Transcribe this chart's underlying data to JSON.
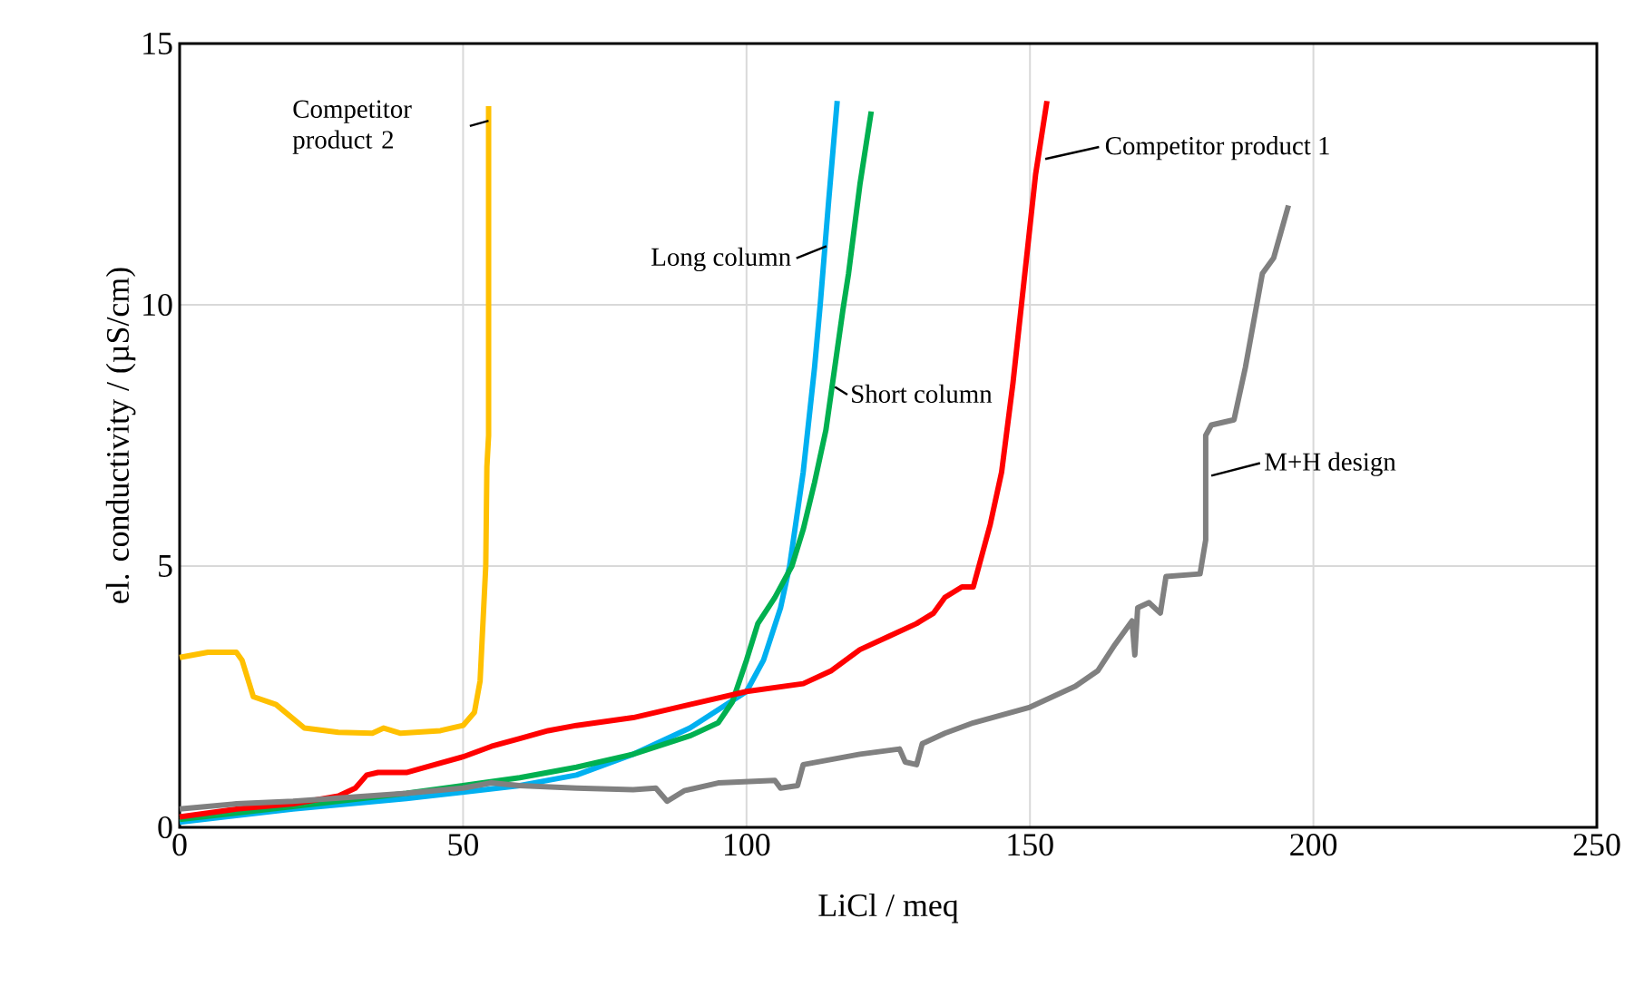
{
  "chart_data": {
    "type": "line",
    "xlabel": "LiCl / meq",
    "ylabel": "el. conductivity / (µS/cm)",
    "xlim": [
      0,
      250
    ],
    "ylim": [
      0,
      15
    ],
    "xticks": [
      0,
      50,
      100,
      150,
      200,
      250
    ],
    "yticks": [
      0,
      5,
      10,
      15
    ],
    "grid": true,
    "legend": false,
    "marker": "none",
    "line_style": "solid",
    "series": [
      {
        "name": "Competitor product 2",
        "color": "#ffc000",
        "x": [
          0,
          5,
          10,
          11,
          13,
          17,
          22,
          28,
          34,
          36,
          39,
          46,
          50,
          52,
          53,
          54,
          54.2,
          54.5,
          54.5
        ],
        "values": [
          3.25,
          3.35,
          3.35,
          3.2,
          2.5,
          2.35,
          1.9,
          1.82,
          1.8,
          1.9,
          1.8,
          1.85,
          1.95,
          2.2,
          2.8,
          5,
          6.9,
          7.5,
          13.8
        ]
      },
      {
        "name": "Long column",
        "color": "#00b0f0",
        "x": [
          0,
          20,
          40,
          60,
          70,
          80,
          90,
          100,
          103,
          106,
          107.6,
          110,
          112,
          113,
          114.5,
          116
        ],
        "values": [
          0.1,
          0.35,
          0.55,
          0.8,
          1.0,
          1.4,
          1.9,
          2.6,
          3.2,
          4.2,
          5.0,
          6.8,
          8.8,
          10,
          12,
          13.9
        ]
      },
      {
        "name": "Short column",
        "color": "#00b050",
        "x": [
          0,
          20,
          40,
          60,
          70,
          80,
          90,
          95,
          97.5,
          100,
          102,
          105,
          108,
          110,
          112,
          114,
          117,
          118,
          120,
          122
        ],
        "values": [
          0.15,
          0.4,
          0.65,
          0.95,
          1.15,
          1.4,
          1.75,
          2.0,
          2.4,
          3.2,
          3.9,
          4.4,
          5.0,
          5.7,
          6.6,
          7.6,
          9.9,
          10.6,
          12.3,
          13.7
        ]
      },
      {
        "name": "Competitor product 1",
        "color": "#ff0000",
        "x": [
          0,
          10,
          20,
          28,
          31,
          33,
          35,
          40,
          45,
          50,
          55,
          60,
          65,
          70,
          80,
          90,
          100,
          110,
          115,
          120,
          125,
          130,
          133,
          135,
          138,
          140,
          143,
          145,
          147,
          149,
          151,
          153
        ],
        "values": [
          0.2,
          0.35,
          0.45,
          0.6,
          0.75,
          1.0,
          1.05,
          1.05,
          1.2,
          1.35,
          1.55,
          1.7,
          1.85,
          1.95,
          2.1,
          2.35,
          2.6,
          2.75,
          3.0,
          3.4,
          3.65,
          3.9,
          4.1,
          4.4,
          4.6,
          4.6,
          5.8,
          6.8,
          8.5,
          10.5,
          12.5,
          13.9
        ]
      },
      {
        "name": "M+H design",
        "color": "#808080",
        "x": [
          0,
          10,
          20,
          40,
          50,
          55,
          60,
          70,
          80,
          84,
          86,
          89,
          95,
          105,
          106,
          109,
          110,
          115,
          120,
          127,
          128,
          130,
          131,
          135,
          140,
          150,
          158,
          162,
          165,
          168,
          168.5,
          169,
          171,
          173,
          174,
          180,
          181,
          181,
          182,
          186,
          188,
          190,
          191,
          193,
          195.6
        ],
        "values": [
          0.35,
          0.45,
          0.5,
          0.65,
          0.75,
          0.85,
          0.8,
          0.75,
          0.72,
          0.75,
          0.5,
          0.7,
          0.85,
          0.9,
          0.75,
          0.8,
          1.2,
          1.3,
          1.4,
          1.5,
          1.25,
          1.2,
          1.6,
          1.8,
          2.0,
          2.3,
          2.7,
          3.0,
          3.5,
          3.95,
          3.3,
          4.2,
          4.3,
          4.1,
          4.8,
          4.85,
          5.5,
          7.5,
          7.7,
          7.8,
          8.8,
          10.0,
          10.6,
          10.9,
          11.9
        ]
      }
    ]
  }
}
